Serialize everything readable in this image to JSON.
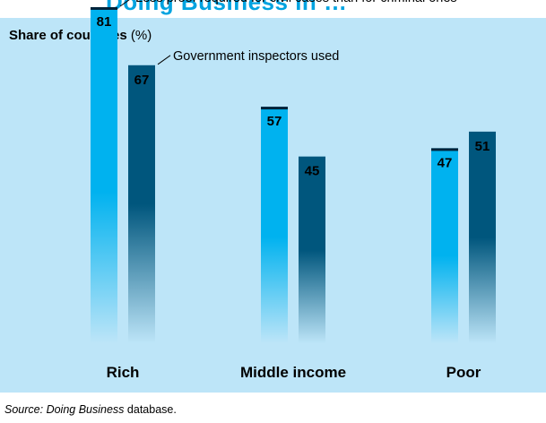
{
  "header_fragment": "Doing Business in …",
  "y_title": {
    "bold": "Share of countries",
    "unit": "(%)"
  },
  "source": {
    "label": "Source:",
    "name": "Doing Business",
    "rest": "database."
  },
  "colors": {
    "panel": "#bde5f8",
    "series1": "#00b2ef",
    "series2": "#00567d",
    "label_text_series2": "#ffffff",
    "header_text": "#00a3e0"
  },
  "chart_data": {
    "type": "bar",
    "categories": [
      "Rich",
      "Middle income",
      "Poor"
    ],
    "series": [
      {
        "name": "Less proof required for civil cases than for criminal ones",
        "values": [
          81,
          57,
          47
        ]
      },
      {
        "name": "Government inspectors used",
        "values": [
          67,
          45,
          51
        ]
      }
    ],
    "ylabel": "Share of countries (%)",
    "ylim": [
      0,
      100
    ],
    "grid": false,
    "legend": "annotations on the first category"
  }
}
